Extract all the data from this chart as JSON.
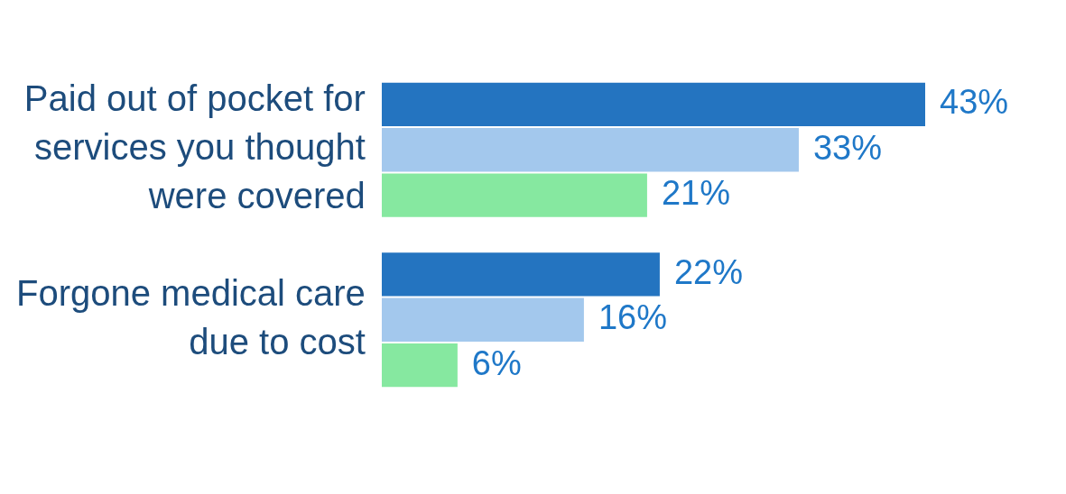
{
  "chart_data": {
    "type": "bar",
    "orientation": "horizontal",
    "categories": [
      "Paid out of pocket for services you thought were covered",
      "Forgone medical care due to cost"
    ],
    "series": [
      {
        "color": "#2474c0",
        "values": [
          43,
          22
        ],
        "value_labels": [
          "43%",
          "22%"
        ]
      },
      {
        "color": "#a3c8ed",
        "values": [
          33,
          16
        ],
        "value_labels": [
          "33%",
          "16%"
        ]
      },
      {
        "color": "#86e8a0",
        "values": [
          21,
          6
        ],
        "value_labels": [
          "21%",
          "6%"
        ]
      }
    ],
    "tick_labels": "y"
  }
}
